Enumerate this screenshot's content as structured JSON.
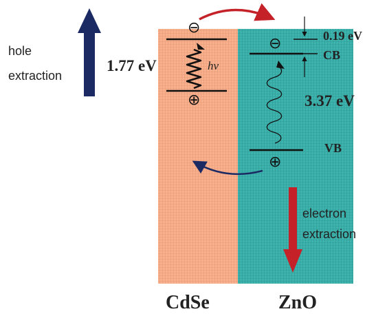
{
  "labels": {
    "hole_extraction_line1": "hole",
    "hole_extraction_line2": "extraction",
    "electron_extraction_line1": "electron",
    "electron_extraction_line2": "extraction",
    "cdse_gap": "1.77 eV",
    "zno_gap": "3.37 eV",
    "cb_offset": "0.19 eV",
    "hv": "hv",
    "cb": "CB",
    "vb": "VB",
    "cdse": "CdSe",
    "zno": "ZnO"
  },
  "symbols": {
    "electron": "⊖",
    "hole": "⊕"
  },
  "colors": {
    "cdse_fill": "#f8b08d",
    "zno_fill": "#3fb3ae",
    "electron_arrow": "#c42128",
    "hole_arrow": "#1b2a63",
    "line": "#111111"
  }
}
